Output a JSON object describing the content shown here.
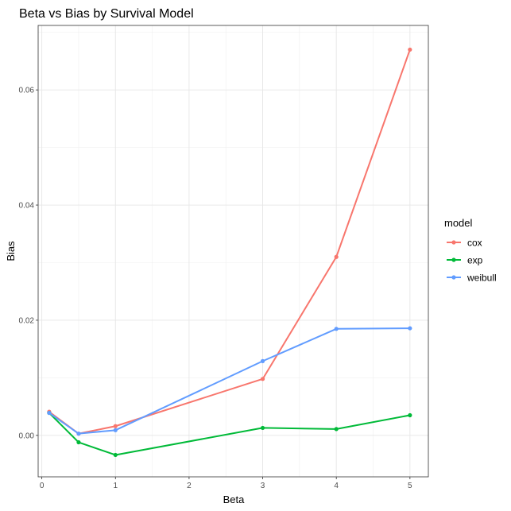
{
  "chart_data": {
    "type": "line",
    "title": "Beta vs Bias by Survival Model",
    "xlabel": "Beta",
    "ylabel": "Bias",
    "x": [
      0.1,
      0.5,
      1,
      3,
      4,
      5
    ],
    "xlim": [
      -0.05,
      5.25
    ],
    "ylim": [
      -0.0072,
      0.0712
    ],
    "xticks": [
      0,
      1,
      2,
      3,
      4,
      5
    ],
    "xtick_labels": [
      "0",
      "1",
      "2",
      "3",
      "4",
      "5"
    ],
    "xminor": [
      0.5,
      1.5,
      2.5,
      3.5,
      4.5
    ],
    "yticks": [
      0.0,
      0.02,
      0.04,
      0.06
    ],
    "ytick_labels": [
      "0.00",
      "0.02",
      "0.04",
      "0.06"
    ],
    "yminor": [
      0.01,
      0.03,
      0.05,
      0.07
    ],
    "grid": true,
    "legend_position": "right",
    "legend_title": "model",
    "series": [
      {
        "name": "cox",
        "color": "#F8766D",
        "values": [
          0.0041,
          0.0003,
          0.0016,
          0.0098,
          0.031,
          0.067
        ]
      },
      {
        "name": "exp",
        "color": "#00BA38",
        "values": [
          0.0039,
          -0.0012,
          -0.0034,
          0.0013,
          0.0011,
          0.0035
        ]
      },
      {
        "name": "weibull",
        "color": "#619CFF",
        "values": [
          0.0039,
          0.0003,
          0.0009,
          0.0129,
          0.0185,
          0.0186
        ]
      }
    ]
  }
}
